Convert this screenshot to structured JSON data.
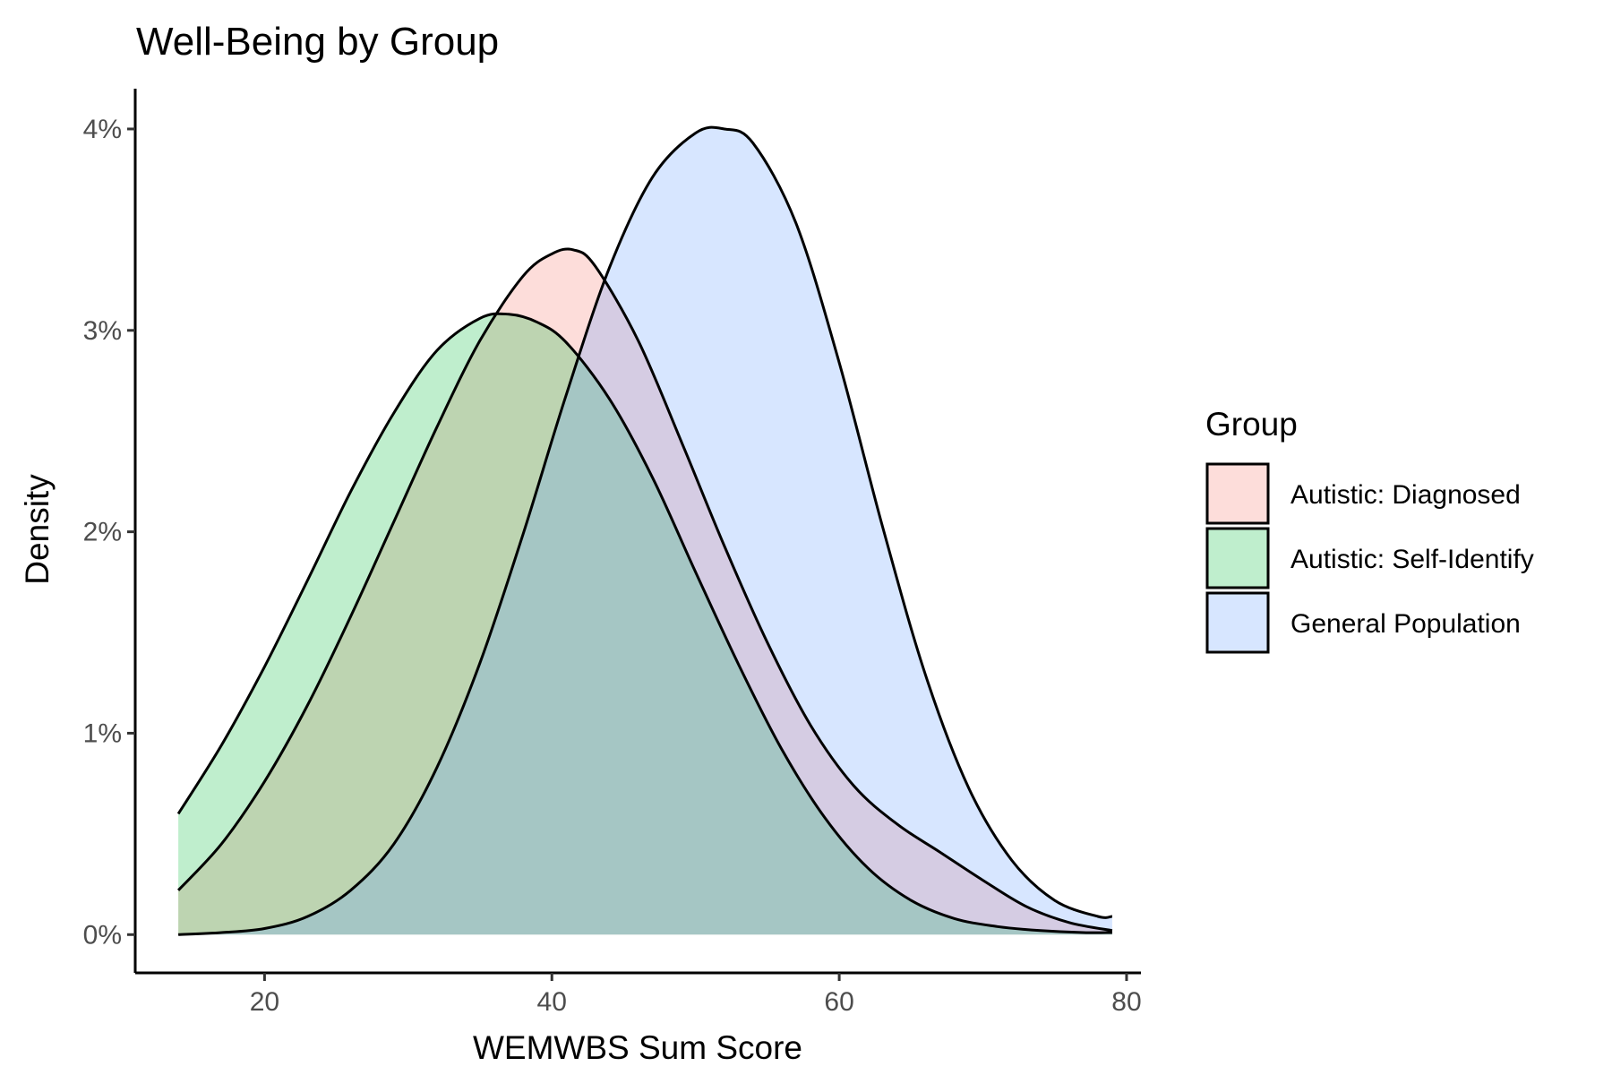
{
  "chart_data": {
    "type": "area",
    "title": "Well-Being by Group",
    "xlabel": "WEMWBS Sum Score",
    "ylabel": "Density",
    "xlim": [
      11,
      81
    ],
    "ylim": [
      -0.0019,
      0.042
    ],
    "x_ticks": [
      20,
      40,
      60,
      80
    ],
    "x_tick_labels": [
      "20",
      "40",
      "60",
      "80"
    ],
    "y_ticks": [
      0,
      0.01,
      0.02,
      0.03,
      0.04
    ],
    "y_tick_labels": [
      "0%",
      "1%",
      "2%",
      "3%",
      "4%"
    ],
    "grid": false,
    "legend": {
      "title": "Group",
      "position": "right"
    },
    "series": [
      {
        "name": "Autistic: Diagnosed",
        "color": "#f8766d",
        "x": [
          14,
          17,
          20,
          23,
          26,
          29,
          32,
          35,
          38,
          40,
          41.5,
          43,
          46,
          49,
          52,
          55,
          58,
          61,
          64,
          67,
          70,
          73,
          76,
          79
        ],
        "y": [
          0.0022,
          0.0045,
          0.0076,
          0.0114,
          0.0158,
          0.0205,
          0.0252,
          0.0295,
          0.0327,
          0.0338,
          0.034,
          0.0332,
          0.0295,
          0.0245,
          0.0193,
          0.0145,
          0.0104,
          0.0074,
          0.0055,
          0.0041,
          0.0027,
          0.0014,
          0.0006,
          0.0002
        ]
      },
      {
        "name": "Autistic: Self-Identify",
        "color": "#00ba38",
        "x": [
          14,
          17,
          20,
          23,
          26,
          29,
          32,
          35,
          37,
          39,
          41,
          44,
          47,
          50,
          53,
          56,
          59,
          62,
          65,
          68,
          71,
          74,
          77,
          79
        ],
        "y": [
          0.006,
          0.0094,
          0.0133,
          0.0176,
          0.022,
          0.0259,
          0.029,
          0.0306,
          0.0308,
          0.0304,
          0.0294,
          0.0266,
          0.0227,
          0.018,
          0.0134,
          0.0092,
          0.0058,
          0.0033,
          0.0017,
          0.0008,
          0.0004,
          0.0002,
          0.0001,
          0.0001
        ]
      },
      {
        "name": "General Population",
        "color": "#619cff",
        "x": [
          14,
          17,
          20,
          23,
          26,
          29,
          32,
          35,
          38,
          41,
          44,
          47,
          50,
          52,
          54,
          57,
          60,
          63,
          66,
          69,
          72,
          75,
          78,
          79
        ],
        "y": [
          0.0,
          0.0001,
          0.0003,
          0.0009,
          0.0022,
          0.0045,
          0.0083,
          0.0135,
          0.0199,
          0.0268,
          0.0331,
          0.0376,
          0.0398,
          0.04,
          0.0393,
          0.0353,
          0.0284,
          0.0203,
          0.0129,
          0.0073,
          0.0037,
          0.0017,
          0.0009,
          0.0009
        ]
      }
    ]
  }
}
